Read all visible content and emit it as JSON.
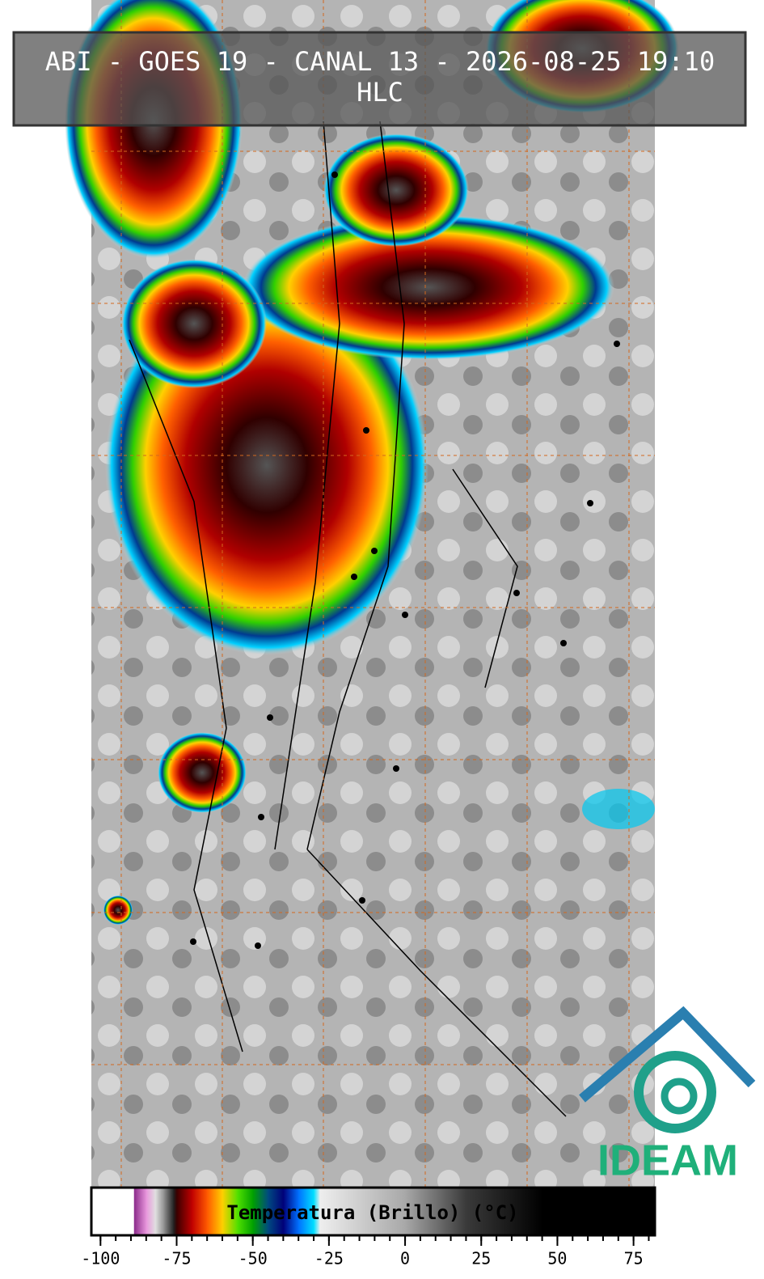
{
  "title": "ABI - GOES 19 - CANAL 13 - 2026-08-25 19:10",
  "subtitle": "HLC",
  "logo": "IDEAM",
  "colorbar": {
    "label": "Temperatura (Brillo) (°C)",
    "lim": [
      -103,
      82
    ],
    "ticks": [
      -100,
      -75,
      -50,
      -25,
      0,
      25,
      50,
      75
    ],
    "minor_step": 5,
    "stops": [
      [
        -103,
        "#ffffff"
      ],
      [
        -89,
        "#ffffff"
      ],
      [
        -89,
        "#8a2a8a"
      ],
      [
        -85,
        "#e896dc"
      ],
      [
        -82,
        "#e0e0e0"
      ],
      [
        -79,
        "#8a8a8a"
      ],
      [
        -76,
        "#202020"
      ],
      [
        -75,
        "#3a0000"
      ],
      [
        -70,
        "#c00000"
      ],
      [
        -65,
        "#ff5a00"
      ],
      [
        -60,
        "#ffd000"
      ],
      [
        -55,
        "#50e000"
      ],
      [
        -50,
        "#00a000"
      ],
      [
        -45,
        "#004a80"
      ],
      [
        -40,
        "#000078"
      ],
      [
        -35,
        "#0070ff"
      ],
      [
        -30,
        "#00e0ff"
      ],
      [
        -28,
        "#eeeeee"
      ],
      [
        0,
        "#a8a8a8"
      ],
      [
        20,
        "#3a3a3a"
      ],
      [
        45,
        "#000000"
      ],
      [
        82,
        "#000000"
      ]
    ]
  }
}
